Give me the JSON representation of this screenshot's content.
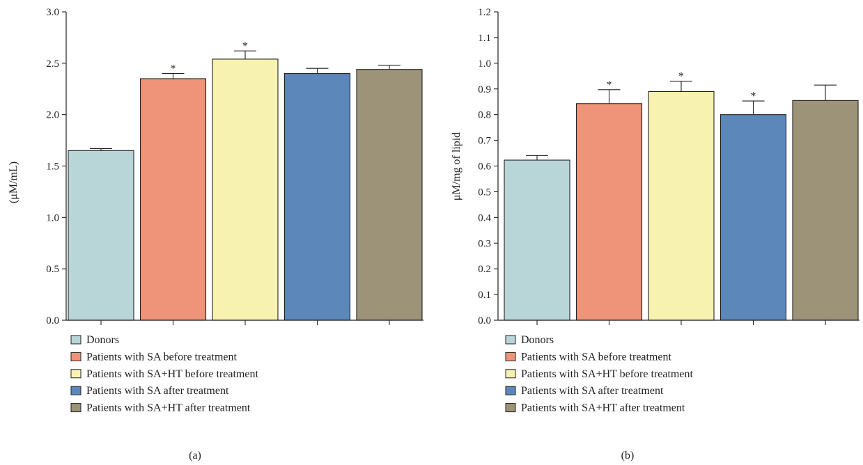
{
  "chart_data": [
    {
      "type": "bar",
      "panel_label": "(a)",
      "categories": [
        "Donors",
        "Patients with SA before treatment",
        "Patients with SA+HT before treatment",
        "Patients with SA after treatment",
        "Patients with SA+HT after treatment"
      ],
      "values": [
        1.65,
        2.35,
        2.54,
        2.4,
        2.44
      ],
      "error_upper": [
        0.02,
        0.05,
        0.08,
        0.05,
        0.04
      ],
      "significance": [
        "",
        "*",
        "*",
        "",
        ""
      ],
      "ylabel": "(μM/mL)",
      "xlabel": "",
      "ylim": [
        0,
        3.0
      ],
      "yticks": [
        "0.0",
        "0.5",
        "1.0",
        "1.5",
        "2.0",
        "2.5",
        "3.0"
      ],
      "colors": [
        "#b8d5d8",
        "#ef9479",
        "#f8f2b1",
        "#5b87bb",
        "#9c9378"
      ],
      "grid": false,
      "legend_placement": "bottom-left"
    },
    {
      "type": "bar",
      "panel_label": "(b)",
      "categories": [
        "Donors",
        "Patients with SA before treatment",
        "Patients with SA+HT before treatment",
        "Patients with SA after treatment",
        "Patients with SA+HT after treatment"
      ],
      "values": [
        0.623,
        0.843,
        0.89,
        0.8,
        0.855
      ],
      "error_upper": [
        0.018,
        0.054,
        0.04,
        0.053,
        0.06
      ],
      "significance": [
        "",
        "*",
        "*",
        "*",
        ""
      ],
      "ylabel": "μM/mg of lipid",
      "xlabel": "",
      "ylim": [
        0,
        1.2
      ],
      "yticks": [
        "0.0",
        "0.1",
        "0.2",
        "0.3",
        "0.4",
        "0.5",
        "0.6",
        "0.7",
        "0.8",
        "0.9",
        "1.0",
        "1.1",
        "1.2"
      ],
      "colors": [
        "#b8d5d8",
        "#ef9479",
        "#f8f2b1",
        "#5b87bb",
        "#9c9378"
      ],
      "grid": false,
      "legend_placement": "bottom-left"
    }
  ]
}
